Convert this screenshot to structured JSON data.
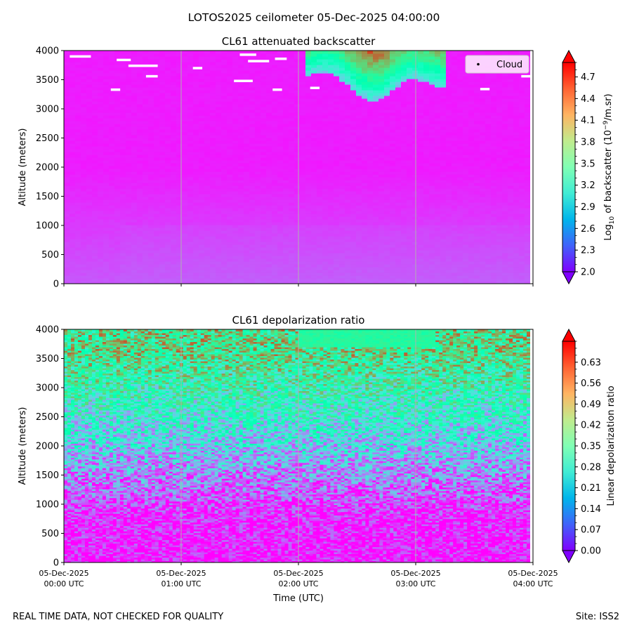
{
  "figure": {
    "suptitle": "LOTOS2025 ceilometer 05-Dec-2025 04:00:00",
    "footer_left": "REAL TIME DATA, NOT CHECKED FOR QUALITY",
    "footer_right": "Site: ISS2",
    "xlabel": "Time (UTC)"
  },
  "chart_data": [
    {
      "type": "heatmap",
      "title": "CL61 attenuated backscatter",
      "ylabel": "Altitude (meters)",
      "xlabel": "",
      "x_range_hours": [
        0,
        4
      ],
      "ylim": [
        0,
        4000
      ],
      "yticks": [
        0,
        500,
        1000,
        1500,
        2000,
        2500,
        3000,
        3500,
        4000
      ],
      "ytick_labels": [
        "0",
        "500",
        "1000",
        "1500",
        "2000",
        "2500",
        "3000",
        "3500",
        "4000"
      ],
      "xticks_hours": [
        0,
        1,
        2,
        3,
        4
      ],
      "colorbar": {
        "label_main": "Log",
        "label_sub": "10",
        "label_rest": " of backscatter (10",
        "label_sup": "−9",
        "label_end": "/m.sr)",
        "min": 2.0,
        "max": 4.9,
        "ticks": [
          2.0,
          2.3,
          2.6,
          2.9,
          3.2,
          3.5,
          3.8,
          4.1,
          4.4,
          4.7
        ],
        "tick_labels": [
          "2.0",
          "2.3",
          "2.6",
          "2.9",
          "3.2",
          "3.5",
          "3.8",
          "4.1",
          "4.4",
          "4.7"
        ],
        "colormap": "rainbow"
      },
      "legend": {
        "label": "Cloud",
        "loc": "upper right"
      },
      "description_profile": "values ~2.3 near surface decreasing to ~2.1 aloft; cloud/high backscatter (3.0-4.7) above 3300 m between 02:05 and 03:20 UTC"
    },
    {
      "type": "heatmap",
      "title": "CL61 depolarization ratio",
      "ylabel": "Altitude (meters)",
      "xlabel": "Time (UTC)",
      "x_range_hours": [
        0,
        4
      ],
      "ylim": [
        0,
        4000
      ],
      "yticks": [
        0,
        500,
        1000,
        1500,
        2000,
        2500,
        3000,
        3500,
        4000
      ],
      "ytick_labels": [
        "0",
        "500",
        "1000",
        "1500",
        "2000",
        "2500",
        "3000",
        "3500",
        "4000"
      ],
      "xticks_hours": [
        0,
        1,
        2,
        3,
        4
      ],
      "xtick_labels": [
        [
          "05-Dec-2025",
          "00:00 UTC"
        ],
        [
          "05-Dec-2025",
          "01:00 UTC"
        ],
        [
          "05-Dec-2025",
          "02:00 UTC"
        ],
        [
          "05-Dec-2025",
          "03:00 UTC"
        ],
        [
          "05-Dec-2025",
          "04:00 UTC"
        ]
      ],
      "colorbar": {
        "label": "Linear depolarization ratio",
        "min": 0.0,
        "max": 0.7,
        "ticks": [
          0.0,
          0.07,
          0.14,
          0.21,
          0.28,
          0.35,
          0.42,
          0.49,
          0.56,
          0.63
        ],
        "tick_labels": [
          "0.00",
          "0.07",
          "0.14",
          "0.21",
          "0.28",
          "0.35",
          "0.42",
          "0.49",
          "0.56",
          "0.63"
        ],
        "colormap": "rainbow"
      },
      "description_profile": "low values (0.02-0.07) below 1500 m, increasing to 0.3-0.6 above 3000 m"
    }
  ]
}
